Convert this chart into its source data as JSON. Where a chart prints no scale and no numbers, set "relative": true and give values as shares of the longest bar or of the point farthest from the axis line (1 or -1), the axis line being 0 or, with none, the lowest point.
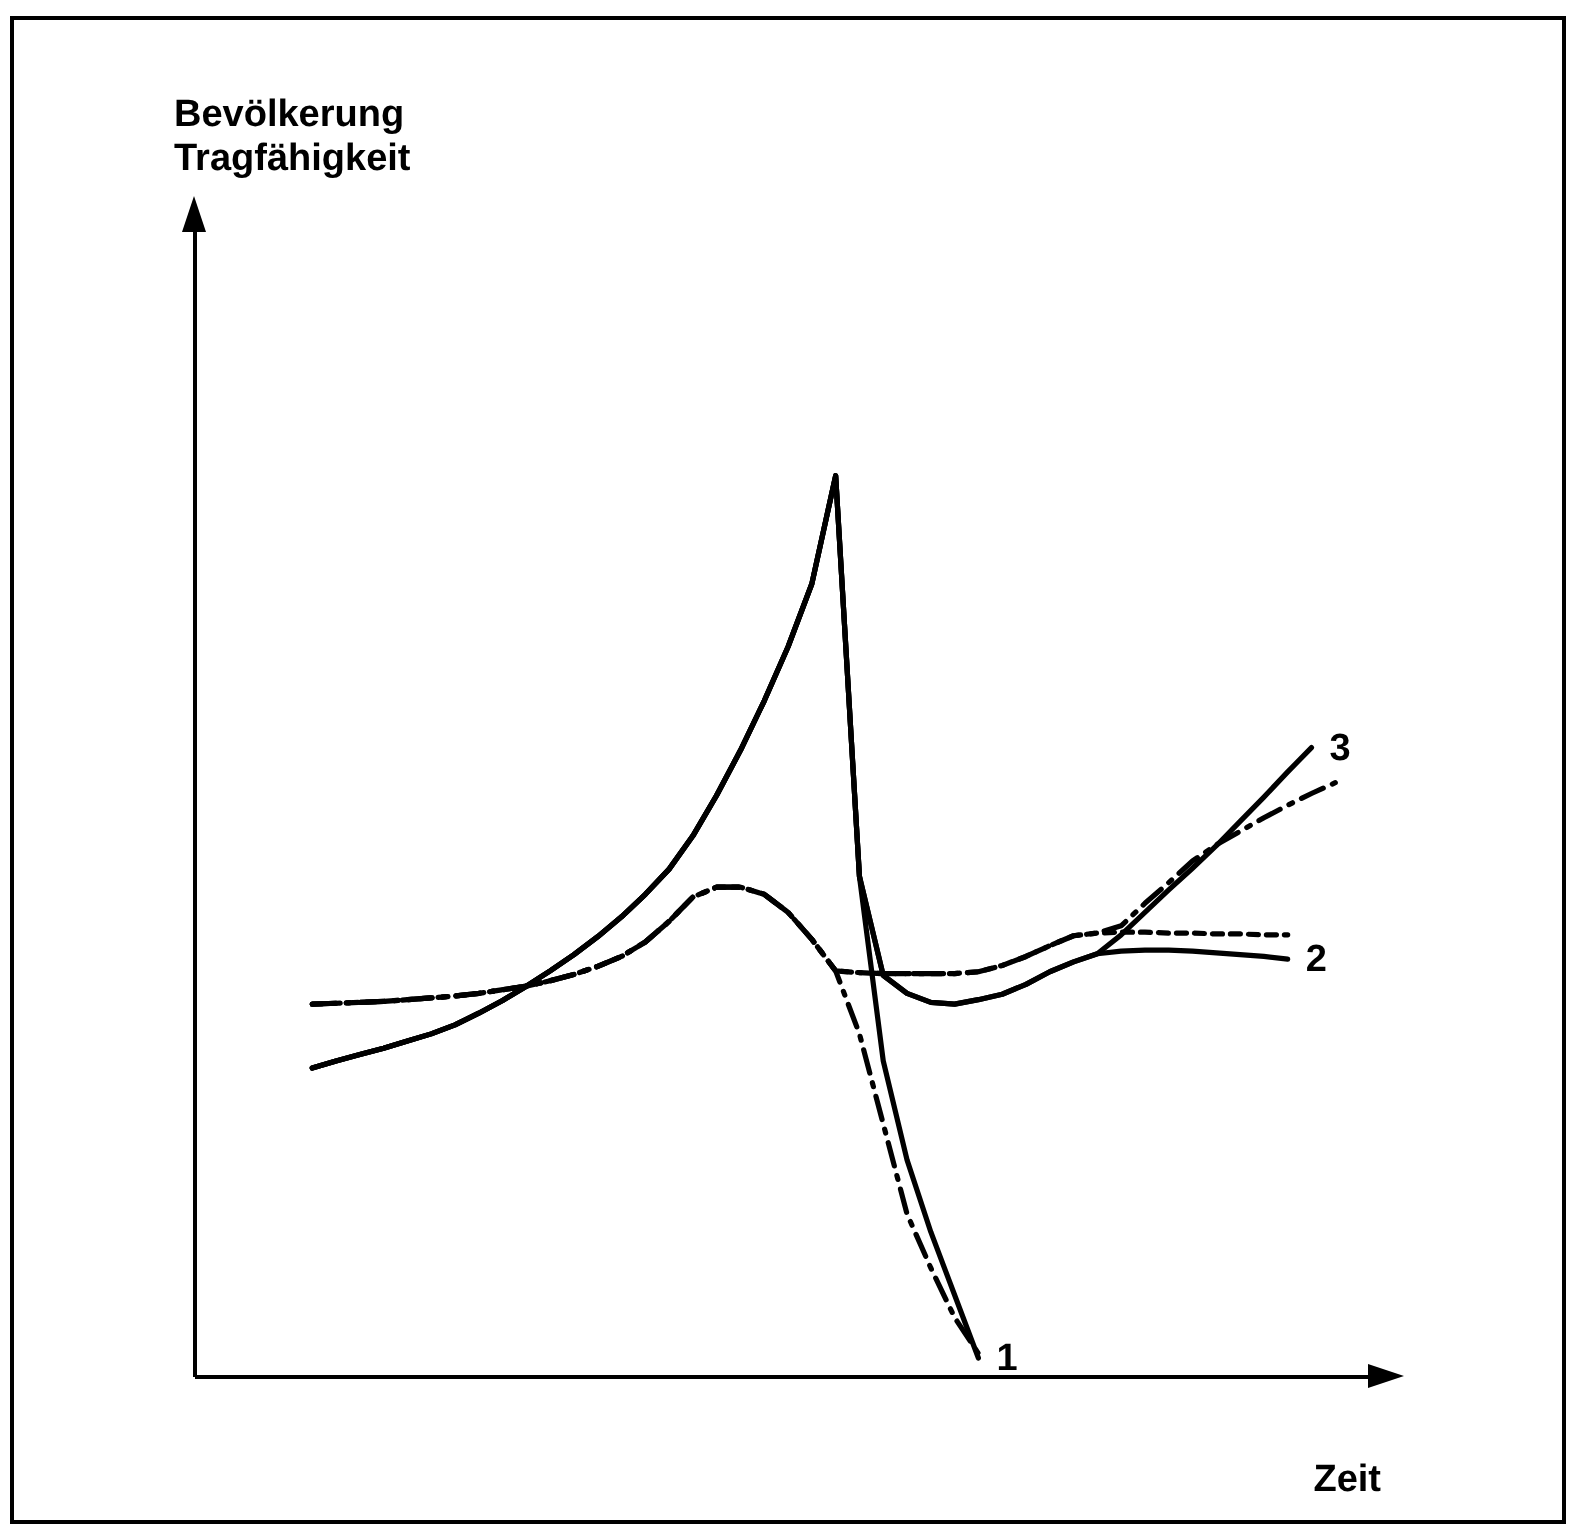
{
  "chart_data": {
    "type": "line",
    "relative": true,
    "xlabel": "Zeit",
    "annotations": [
      "Bevölkerung\nTragfähigkeit"
    ],
    "categories": [
      null,
      null,
      null,
      null,
      null,
      null,
      null,
      null,
      null,
      null,
      null,
      null,
      null,
      null,
      null,
      null,
      null,
      null,
      null,
      null,
      null,
      null,
      null,
      null,
      null,
      null,
      null,
      null,
      null,
      null,
      null,
      null,
      null,
      null,
      null,
      null,
      null,
      null,
      null,
      null,
      null,
      null,
      null,
      null
    ],
    "series": [
      {
        "name": "1",
        "color": "#000000",
        "line_style": "solid",
        "values": [
          0.342,
          0.35,
          0.357,
          0.364,
          0.372,
          0.38,
          0.39,
          0.403,
          0.417,
          0.433,
          0.45,
          0.468,
          0.488,
          0.51,
          0.535,
          0.563,
          0.6,
          0.645,
          0.695,
          0.75,
          0.81,
          0.88,
          1,
          0.555,
          0.35,
          0.24,
          0.16,
          0.09,
          0.02,
          null,
          null,
          null,
          null,
          null,
          null,
          null,
          null,
          null,
          null,
          null,
          null,
          null,
          null,
          null
        ]
      },
      {
        "name": "2",
        "color": "#000000",
        "line_style": "solid",
        "values": [
          0.342,
          0.35,
          0.357,
          0.364,
          0.372,
          0.38,
          0.39,
          0.403,
          0.417,
          0.433,
          0.45,
          0.468,
          0.488,
          0.51,
          0.535,
          0.563,
          0.6,
          0.645,
          0.695,
          0.75,
          0.81,
          0.88,
          1,
          0.555,
          0.445,
          0.425,
          0.415,
          0.413,
          0.418,
          0.424,
          0.435,
          0.449,
          0.46,
          0.469,
          0.472,
          0.473,
          0.473,
          0.472,
          0.47,
          0.468,
          0.466,
          0.463,
          null,
          null
        ]
      },
      {
        "name": "3",
        "color": "#000000",
        "line_style": "solid",
        "values": [
          0.342,
          0.35,
          0.357,
          0.364,
          0.372,
          0.38,
          0.39,
          0.403,
          0.417,
          0.433,
          0.45,
          0.468,
          0.488,
          0.51,
          0.535,
          0.563,
          0.6,
          0.645,
          0.695,
          0.75,
          0.81,
          0.88,
          1,
          0.555,
          0.445,
          0.425,
          0.415,
          0.413,
          0.418,
          0.424,
          0.435,
          0.449,
          0.46,
          0.469,
          0.49,
          0.515,
          0.54,
          0.564,
          0.589,
          0.616,
          0.643,
          0.671,
          0.698,
          null
        ]
      },
      {
        "color": "#000000",
        "line_style": "dashed",
        "values": [
          0.413,
          0.414,
          0.415,
          0.416,
          0.418,
          0.42,
          0.422,
          0.425,
          0.429,
          0.433,
          0.439,
          0.446,
          0.455,
          0.466,
          0.482,
          0.505,
          0.532,
          0.543,
          0.543,
          0.535,
          0.515,
          0.485,
          0.45,
          0.38,
          0.28,
          0.18,
          0.12,
          0.065,
          0.025,
          null,
          null,
          null,
          null,
          null,
          null,
          null,
          null,
          null,
          null,
          null,
          null,
          null,
          null,
          null
        ]
      },
      {
        "color": "#000000",
        "line_style": "dotted",
        "values": [
          0.413,
          0.414,
          0.415,
          0.416,
          0.418,
          0.42,
          0.422,
          0.425,
          0.429,
          0.433,
          0.439,
          0.446,
          0.455,
          0.466,
          0.482,
          0.505,
          0.532,
          0.543,
          0.543,
          0.535,
          0.515,
          0.485,
          0.45,
          0.448,
          0.447,
          0.447,
          0.447,
          0.447,
          0.449,
          0.456,
          0.466,
          0.478,
          0.489,
          0.492,
          0.493,
          0.493,
          0.492,
          0.492,
          0.491,
          0.491,
          0.49,
          0.49,
          null,
          null
        ]
      },
      {
        "color": "#000000",
        "line_style": "dashed",
        "values": [
          0.413,
          0.414,
          0.415,
          0.416,
          0.418,
          0.42,
          0.422,
          0.425,
          0.429,
          0.433,
          0.439,
          0.446,
          0.455,
          0.466,
          0.482,
          0.505,
          0.532,
          0.543,
          0.543,
          0.535,
          0.515,
          0.485,
          0.45,
          0.448,
          0.447,
          0.447,
          0.447,
          0.447,
          0.449,
          0.456,
          0.466,
          0.478,
          0.489,
          0.492,
          0.5,
          0.525,
          0.548,
          0.572,
          0.59,
          0.605,
          0.62,
          0.634,
          0.647,
          0.659
        ]
      }
    ]
  }
}
